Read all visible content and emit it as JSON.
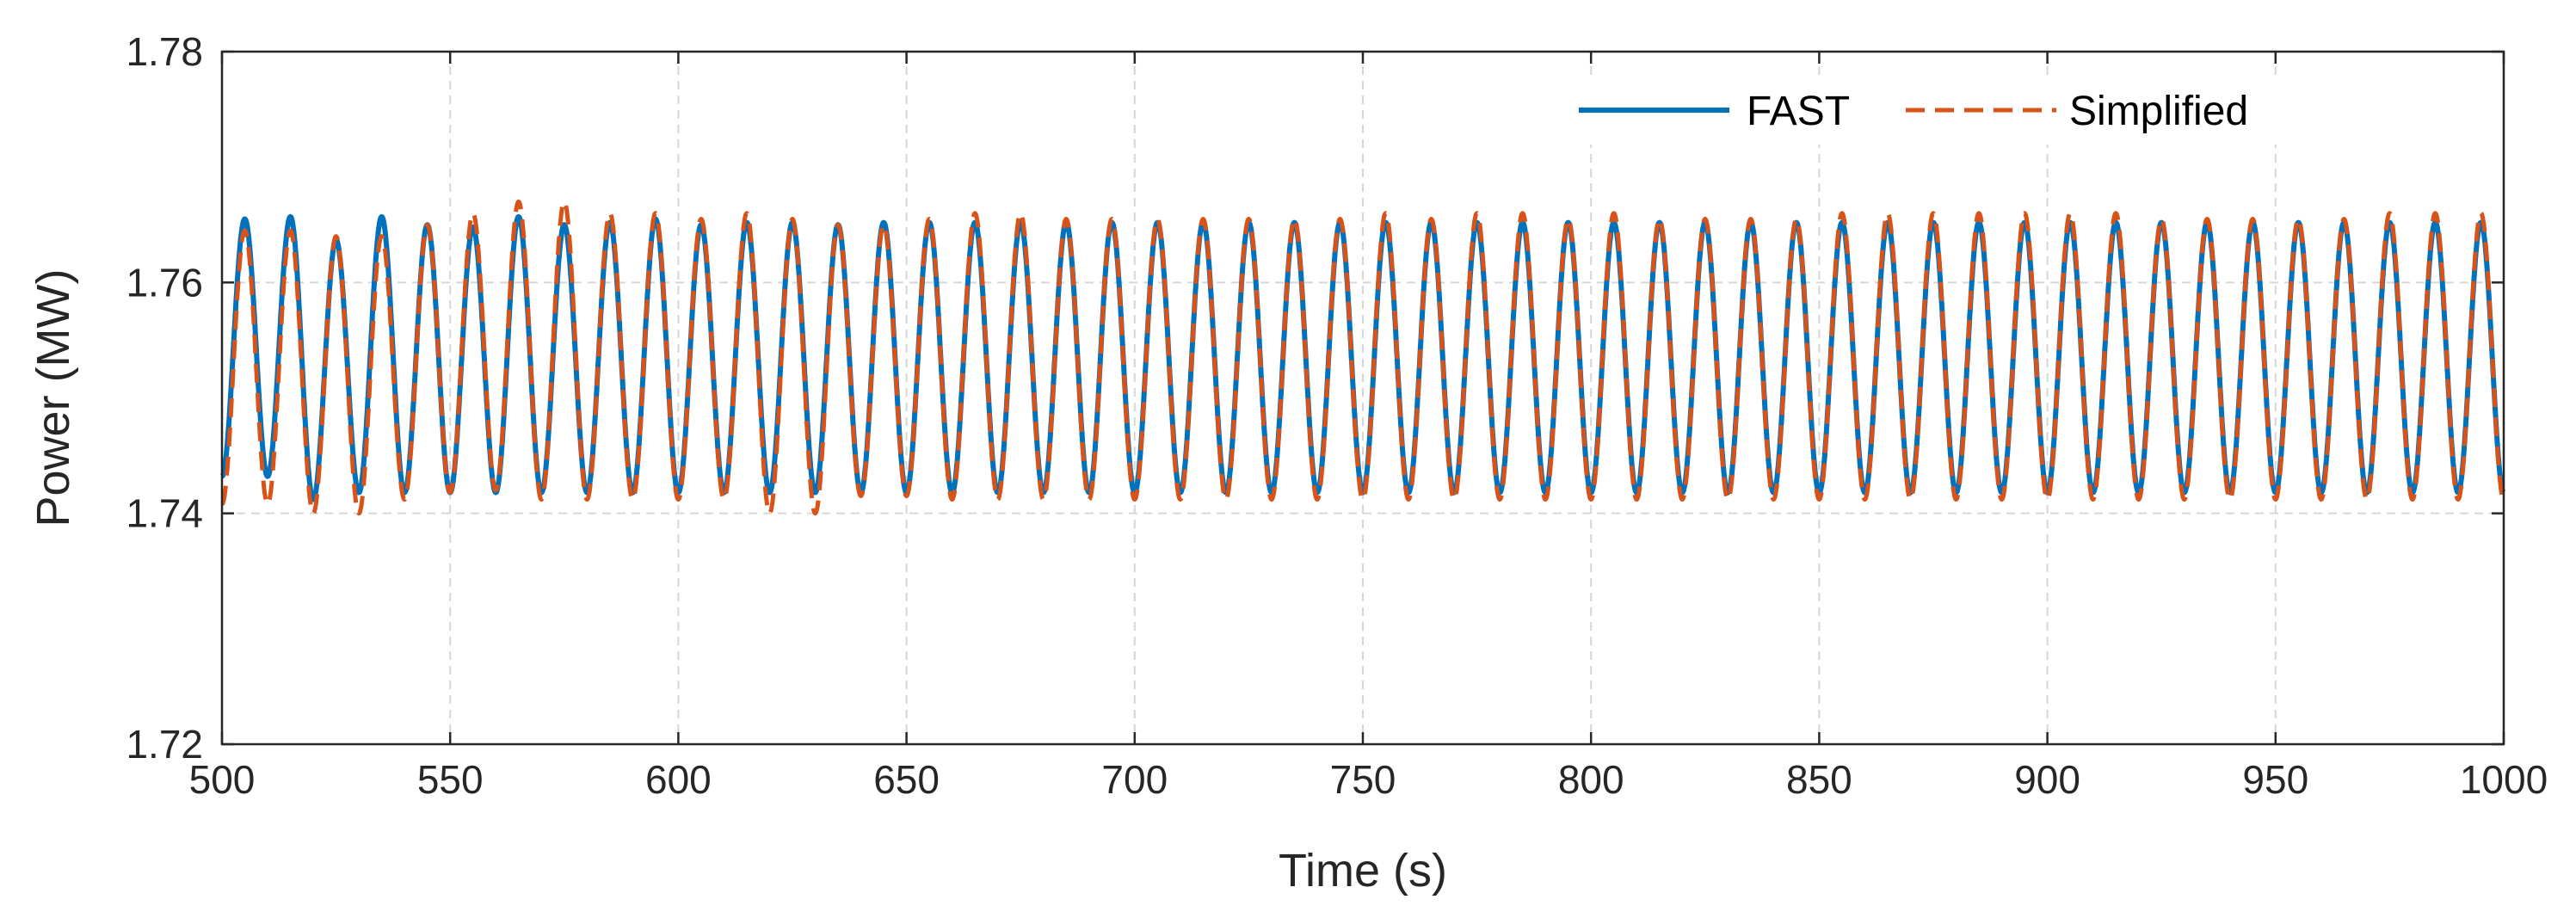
{
  "chart_data": {
    "type": "line",
    "title": "",
    "xlabel": "Time (s)",
    "ylabel": "Power (MW)",
    "xlim": [
      500,
      1000
    ],
    "ylim": [
      1.72,
      1.78
    ],
    "xticks": [
      500,
      550,
      600,
      650,
      700,
      750,
      800,
      850,
      900,
      950,
      1000
    ],
    "xtick_labels": [
      "500",
      "550",
      "600",
      "650",
      "700",
      "750",
      "800",
      "850",
      "900",
      "950",
      "1000"
    ],
    "yticks": [
      1.72,
      1.74,
      1.76,
      1.78
    ],
    "ytick_labels": [
      "1.72",
      "1.74",
      "1.76",
      "1.78"
    ],
    "grid": true,
    "legend_position": "top-right",
    "series": [
      {
        "name": "FAST",
        "style": "solid",
        "color": "#0072BD",
        "period_s": 10,
        "peak_times_s": [
          505,
          515,
          525,
          535,
          545,
          555,
          565,
          575,
          585,
          595,
          605,
          615,
          625,
          635,
          645,
          655,
          665,
          675,
          685,
          695,
          705,
          715,
          725,
          735,
          745,
          755,
          765,
          775,
          785,
          795,
          805,
          815,
          825,
          835,
          845,
          855,
          865,
          875,
          885,
          895,
          905,
          915,
          925,
          935,
          945,
          955,
          965,
          975,
          985,
          995
        ],
        "peak_values_MW": [
          1.7655,
          1.7657,
          1.7637,
          1.7657,
          1.765,
          1.7648,
          1.7657,
          1.765,
          1.7652,
          1.7655,
          1.765,
          1.7652,
          1.7652,
          1.765,
          1.7652,
          1.7652,
          1.7652,
          1.7652,
          1.7652,
          1.7652,
          1.7652,
          1.7652,
          1.7652,
          1.7652,
          1.7652,
          1.7652,
          1.7652,
          1.7652,
          1.7652,
          1.7652,
          1.7652,
          1.7652,
          1.7652,
          1.7652,
          1.7652,
          1.7652,
          1.7652,
          1.7652,
          1.7652,
          1.7652,
          1.7652,
          1.7652,
          1.7652,
          1.7652,
          1.7652,
          1.7652,
          1.7652,
          1.7652,
          1.7652,
          1.7652
        ],
        "trough_values_MW": [
          1.7432,
          1.7412,
          1.7418,
          1.7418,
          1.7418,
          1.7418,
          1.7418,
          1.7418,
          1.7418,
          1.7418,
          1.7418,
          1.7418,
          1.7418,
          1.7418,
          1.7418,
          1.7418,
          1.7418,
          1.7418,
          1.7418,
          1.7418,
          1.7418,
          1.7418,
          1.7418,
          1.7418,
          1.7418,
          1.7418,
          1.7418,
          1.7418,
          1.7418,
          1.7418,
          1.7418,
          1.7418,
          1.7418,
          1.7418,
          1.7418,
          1.7418,
          1.7418,
          1.7418,
          1.7418,
          1.7418,
          1.7418,
          1.7418,
          1.7418,
          1.7418,
          1.7418,
          1.7418,
          1.7418,
          1.7418,
          1.7418,
          1.7418
        ]
      },
      {
        "name": "Simplified",
        "style": "dashed",
        "color": "#D95319",
        "period_s": 10,
        "peak_times_s": [
          505,
          515,
          525,
          535,
          545,
          555,
          565,
          575,
          585,
          595,
          605,
          615,
          625,
          635,
          645,
          655,
          665,
          675,
          685,
          695,
          705,
          715,
          725,
          735,
          745,
          755,
          765,
          775,
          785,
          795,
          805,
          815,
          825,
          835,
          845,
          855,
          865,
          875,
          885,
          895,
          905,
          915,
          925,
          935,
          945,
          955,
          965,
          975,
          985,
          995
        ],
        "peak_values_MW": [
          1.7645,
          1.7645,
          1.764,
          1.764,
          1.765,
          1.766,
          1.767,
          1.767,
          1.766,
          1.766,
          1.7655,
          1.766,
          1.7655,
          1.765,
          1.765,
          1.7655,
          1.766,
          1.766,
          1.7655,
          1.7655,
          1.7655,
          1.7655,
          1.7655,
          1.7655,
          1.7655,
          1.766,
          1.7655,
          1.766,
          1.766,
          1.7655,
          1.766,
          1.7655,
          1.7655,
          1.7655,
          1.7655,
          1.766,
          1.766,
          1.766,
          1.766,
          1.766,
          1.766,
          1.766,
          1.7655,
          1.7655,
          1.7655,
          1.7655,
          1.7655,
          1.766,
          1.766,
          1.766
        ],
        "trough_values_MW": [
          1.7408,
          1.74,
          1.74,
          1.7412,
          1.7418,
          1.742,
          1.7412,
          1.7412,
          1.7412,
          1.7412,
          1.7412,
          1.74,
          1.74,
          1.7415,
          1.7415,
          1.7412,
          1.7412,
          1.7412,
          1.7412,
          1.7412,
          1.7412,
          1.7412,
          1.7412,
          1.7412,
          1.7412,
          1.7412,
          1.7412,
          1.7412,
          1.7412,
          1.7412,
          1.7412,
          1.7412,
          1.7412,
          1.7412,
          1.7412,
          1.7412,
          1.7412,
          1.7412,
          1.7412,
          1.7412,
          1.7412,
          1.7412,
          1.7412,
          1.7412,
          1.7412,
          1.7412,
          1.7412,
          1.7412,
          1.7412,
          1.7412
        ]
      }
    ]
  }
}
